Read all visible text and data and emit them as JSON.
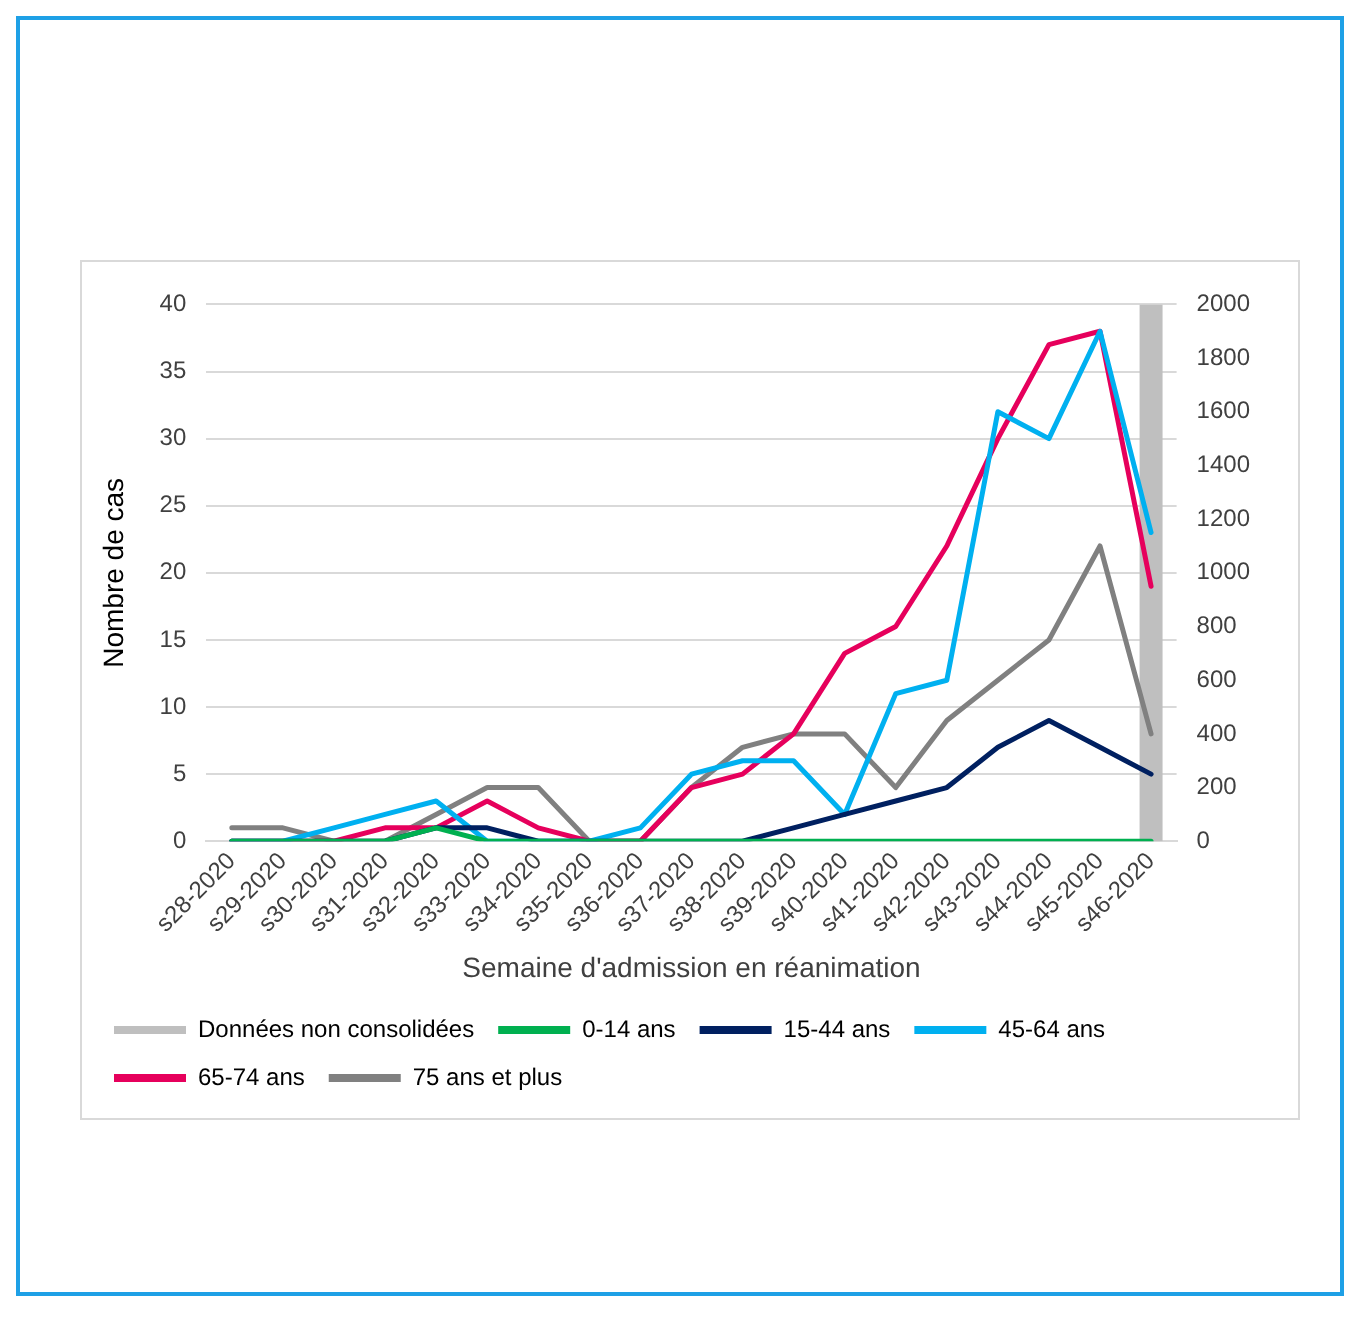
{
  "chart_data": {
    "type": "line",
    "xlabel": "Semaine d'admission en réanimation",
    "ylabel": "Nombre de cas",
    "categories": [
      "s28-2020",
      "s29-2020",
      "s30-2020",
      "s31-2020",
      "s32-2020",
      "s33-2020",
      "s34-2020",
      "s35-2020",
      "s36-2020",
      "s37-2020",
      "s38-2020",
      "s39-2020",
      "s40-2020",
      "s41-2020",
      "s42-2020",
      "s43-2020",
      "s44-2020",
      "s45-2020",
      "s46-2020"
    ],
    "series": [
      {
        "name": "Données non consolidées",
        "type": "bar",
        "axis": "y2",
        "color": "#bfbfbf",
        "values": [
          null,
          null,
          null,
          null,
          null,
          null,
          null,
          null,
          null,
          null,
          null,
          null,
          null,
          null,
          null,
          null,
          null,
          null,
          2000
        ]
      },
      {
        "name": "0-14 ans",
        "color": "#00b050",
        "values": [
          0,
          0,
          0,
          0,
          1,
          0,
          0,
          0,
          0,
          0,
          0,
          0,
          0,
          0,
          0,
          0,
          0,
          0,
          0
        ]
      },
      {
        "name": "15-44 ans",
        "color": "#002060",
        "values": [
          0,
          0,
          0,
          0,
          1,
          1,
          0,
          0,
          0,
          0,
          0,
          1,
          2,
          3,
          4,
          7,
          9,
          7,
          5
        ]
      },
      {
        "name": "45-64 ans",
        "color": "#00b0f0",
        "values": [
          0,
          0,
          1,
          2,
          3,
          0,
          0,
          0,
          1,
          5,
          6,
          6,
          2,
          11,
          12,
          32,
          30,
          38,
          23
        ]
      },
      {
        "name": "65-74 ans",
        "color": "#e6005c",
        "values": [
          0,
          0,
          0,
          1,
          1,
          3,
          1,
          0,
          0,
          4,
          5,
          8,
          14,
          16,
          22,
          30,
          37,
          38,
          19
        ]
      },
      {
        "name": "75 ans et plus",
        "color": "#808080",
        "values": [
          1,
          1,
          0,
          0,
          2,
          4,
          4,
          0,
          0,
          4,
          7,
          8,
          8,
          4,
          9,
          12,
          15,
          22,
          8
        ]
      }
    ],
    "ylim": [
      0,
      40
    ],
    "yticks": [
      0,
      5,
      10,
      15,
      20,
      25,
      30,
      35,
      40
    ],
    "y2lim": [
      0,
      2000
    ],
    "y2ticks": [
      0,
      200,
      400,
      600,
      800,
      1000,
      1200,
      1400,
      1600,
      1800,
      2000
    ],
    "grid": "y",
    "legend": "bottom",
    "marker": "none",
    "line_style": "solid"
  }
}
